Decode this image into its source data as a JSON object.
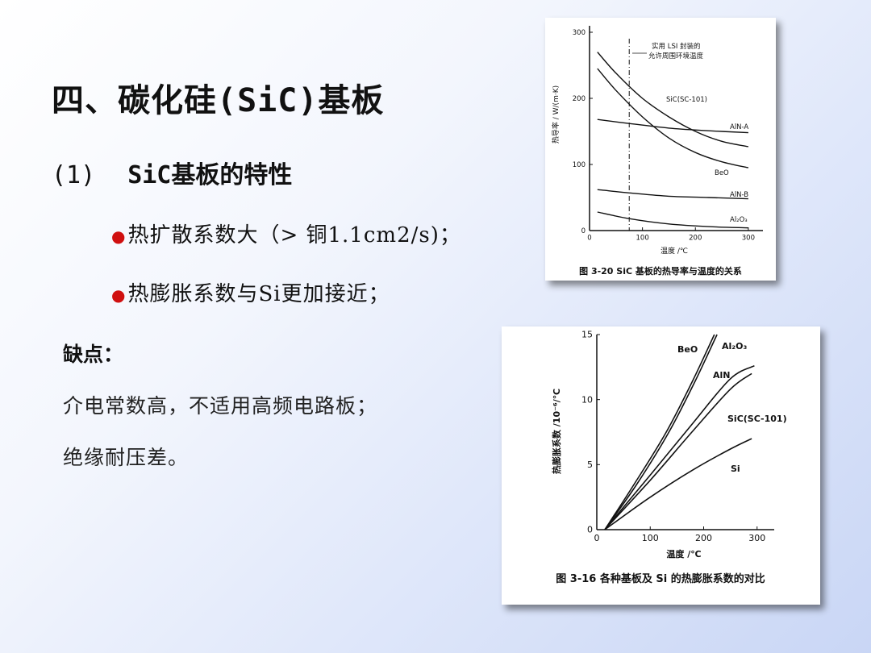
{
  "slide": {
    "title": "四、碳化硅(SiC)基板",
    "subtitle_num": "(1)",
    "subtitle_text": "SiC基板的特性",
    "bullets": [
      {
        "dot": "●",
        "text": "热扩散系数大（> 铜1.1cm2/s)；"
      },
      {
        "dot": "●",
        "text": "热膨胀系数与Si更加接近；"
      }
    ],
    "cons_heading": "缺点：",
    "cons": [
      "介电常数高，不适用高频电路板；",
      "绝缘耐压差。"
    ]
  },
  "figure1": {
    "caption": "图 3-20   SiC 基板的热导率与温度的关系",
    "annotation_line1": "实用 LSI 封装的",
    "annotation_line2": "允许周围环境温度",
    "ylabel": "热导率 / W/(m·K)",
    "xlabel": "温度 /℃",
    "xticks": [
      "0",
      "100",
      "200",
      "300"
    ],
    "yticks": [
      "0",
      "100",
      "200",
      "300"
    ],
    "series_labels": [
      "SiC(SC-101)",
      "AlN-A",
      "BeO",
      "AlN-B",
      "Al₂O₃"
    ]
  },
  "figure2": {
    "caption": "图 3-16    各种基板及 Si 的热膨胀系数的对比",
    "ylabel": "热膨胀系数 /10⁻⁶/℃",
    "xlabel": "温度 /℃",
    "xticks": [
      "0",
      "100",
      "200",
      "300"
    ],
    "yticks": [
      "0",
      "5",
      "10",
      "15"
    ],
    "series_labels": [
      "BeO",
      "Al₂O₃",
      "AlN",
      "SiC(SC-101)",
      "Si"
    ]
  },
  "chart_data": [
    {
      "type": "line",
      "title": "图 3-20   SiC 基板的热导率与温度的关系",
      "xlabel": "温度 /℃",
      "ylabel": "热导率 / W/(m·K)",
      "xlim": [
        0,
        320
      ],
      "ylim": [
        0,
        300
      ],
      "reference_line_x": 75,
      "series": [
        {
          "name": "SiC(SC-101)",
          "points": [
            [
              15,
              270
            ],
            [
              50,
              238
            ],
            [
              100,
              200
            ],
            [
              150,
              172
            ],
            [
              200,
              150
            ],
            [
              250,
              135
            ],
            [
              300,
              127
            ]
          ]
        },
        {
          "name": "BeO",
          "points": [
            [
              15,
              245
            ],
            [
              50,
              212
            ],
            [
              100,
              172
            ],
            [
              150,
              140
            ],
            [
              200,
              118
            ],
            [
              250,
              104
            ],
            [
              300,
              95
            ]
          ]
        },
        {
          "name": "AlN-A",
          "points": [
            [
              15,
              168
            ],
            [
              75,
              162
            ],
            [
              150,
              155
            ],
            [
              225,
              151
            ],
            [
              300,
              148
            ]
          ]
        },
        {
          "name": "AlN-B",
          "points": [
            [
              15,
              62
            ],
            [
              75,
              57
            ],
            [
              150,
              52
            ],
            [
              225,
              50
            ],
            [
              300,
              48
            ]
          ]
        },
        {
          "name": "Al₂O₃",
          "points": [
            [
              15,
              28
            ],
            [
              75,
              18
            ],
            [
              150,
              10
            ],
            [
              225,
              6
            ],
            [
              300,
              4
            ]
          ]
        }
      ]
    },
    {
      "type": "line",
      "title": "图 3-16    各种基板及 Si 的热膨胀系数的对比",
      "xlabel": "温度 /℃",
      "ylabel": "热膨胀系数 /10⁻⁶/℃",
      "xlim": [
        0,
        320
      ],
      "ylim": [
        0,
        15
      ],
      "series": [
        {
          "name": "BeO",
          "points": [
            [
              15,
              0
            ],
            [
              70,
              3.5
            ],
            [
              130,
              7.5
            ],
            [
              180,
              11.5
            ],
            [
              220,
              15
            ]
          ]
        },
        {
          "name": "Al₂O₃",
          "points": [
            [
              15,
              0
            ],
            [
              75,
              3.5
            ],
            [
              135,
              7.5
            ],
            [
              185,
              11.5
            ],
            [
              225,
              15
            ]
          ]
        },
        {
          "name": "AlN",
          "points": [
            [
              15,
              0
            ],
            [
              100,
              4.2
            ],
            [
              180,
              8.2
            ],
            [
              250,
              11.6
            ],
            [
              295,
              12.6
            ]
          ]
        },
        {
          "name": "SiC(SC-101)",
          "points": [
            [
              15,
              0
            ],
            [
              100,
              3.8
            ],
            [
              180,
              7.6
            ],
            [
              250,
              10.8
            ],
            [
              290,
              12.0
            ]
          ]
        },
        {
          "name": "Si",
          "points": [
            [
              15,
              0
            ],
            [
              100,
              2.5
            ],
            [
              180,
              4.6
            ],
            [
              250,
              6.2
            ],
            [
              290,
              7.0
            ]
          ]
        }
      ]
    }
  ]
}
